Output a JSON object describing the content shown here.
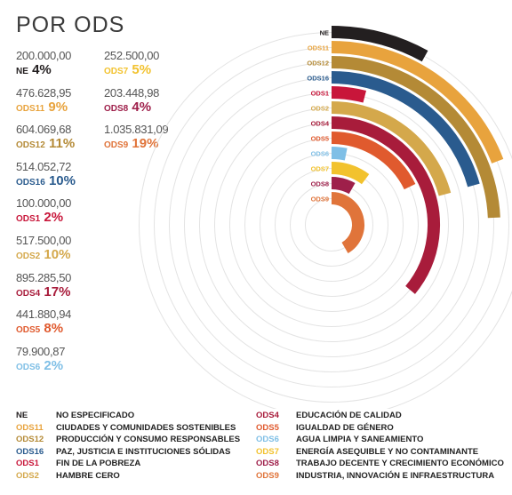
{
  "title": "POR ODS",
  "colors": {
    "NE": "#231f20",
    "ODS11": "#e8a33d",
    "ODS12": "#b48a36",
    "ODS16": "#2a5b8e",
    "ODS1": "#c8163a",
    "ODS2": "#d4a84b",
    "ODS4": "#a81c3b",
    "ODS5": "#e05a2e",
    "ODS6": "#7fbfe6",
    "ODS7": "#f2c22e",
    "ODS8": "#9e1f4a",
    "ODS9": "#e0743a"
  },
  "stats_left": [
    {
      "amount": "200.000,00",
      "code": "NE",
      "pct": "4%"
    },
    {
      "amount": "476.628,95",
      "code": "ODS11",
      "pct": "9%"
    },
    {
      "amount": "604.069,68",
      "code": "ODS12",
      "pct": "11%"
    },
    {
      "amount": "514.052,72",
      "code": "ODS16",
      "pct": "10%"
    },
    {
      "amount": "100.000,00",
      "code": "ODS1",
      "pct": "2%"
    },
    {
      "amount": "517.500,00",
      "code": "ODS2",
      "pct": "10%"
    },
    {
      "amount": "895.285,50",
      "code": "ODS4",
      "pct": "17%"
    },
    {
      "amount": "441.880,94",
      "code": "ODS5",
      "pct": "8%"
    },
    {
      "amount": "79.900,87",
      "code": "ODS6",
      "pct": "2%"
    }
  ],
  "stats_right": [
    {
      "amount": "252.500,00",
      "code": "ODS7",
      "pct": "5%"
    },
    {
      "amount": "203.448,98",
      "code": "ODS8",
      "pct": "4%"
    },
    {
      "amount": "1.035.831,09",
      "code": "ODS9",
      "pct": "19%"
    }
  ],
  "chart_data": {
    "type": "radial-bar",
    "categories": [
      "NE",
      "ODS11",
      "ODS12",
      "ODS16",
      "ODS1",
      "ODS2",
      "ODS4",
      "ODS5",
      "ODS6",
      "ODS7",
      "ODS8",
      "ODS9"
    ],
    "values": [
      200000.0,
      476628.95,
      604069.68,
      514052.72,
      100000.0,
      517500.0,
      895285.5,
      441880.94,
      79900.87,
      252500.0,
      203448.98,
      1035831.09
    ],
    "percentages": [
      4,
      9,
      11,
      10,
      2,
      10,
      17,
      8,
      2,
      5,
      4,
      19
    ],
    "title": "POR ODS",
    "xlabel": "",
    "ylabel": "",
    "grid": true
  },
  "legend": {
    "left": [
      {
        "code": "NE",
        "label": "NO ESPECIFICADO"
      },
      {
        "code": "ODS11",
        "label": "CIUDADES Y COMUNIDADES SOSTENIBLES"
      },
      {
        "code": "ODS12",
        "label": "PRODUCCIÓN Y CONSUMO RESPONSABLES"
      },
      {
        "code": "ODS16",
        "label": "PAZ, JUSTICIA E INSTITUCIONES SÓLIDAS"
      },
      {
        "code": "ODS1",
        "label": "FIN DE LA POBREZA"
      },
      {
        "code": "ODS2",
        "label": "HAMBRE CERO"
      }
    ],
    "right": [
      {
        "code": "ODS4",
        "label": "EDUCACIÓN DE CALIDAD"
      },
      {
        "code": "ODS5",
        "label": "IGUALDAD DE GÉNERO"
      },
      {
        "code": "ODS6",
        "label": "AGUA LIMPIA Y SANEAMIENTO"
      },
      {
        "code": "ODS7",
        "label": "ENERGÍA ASEQUIBLE Y NO CONTAMINANTE"
      },
      {
        "code": "ODS8",
        "label": "TRABAJO DECENTE Y CRECIMIENTO ECONÓMICO"
      },
      {
        "code": "ODS9",
        "label": "INDUSTRIA, INNOVACIÓN E INFRAESTRUCTURA"
      }
    ]
  }
}
